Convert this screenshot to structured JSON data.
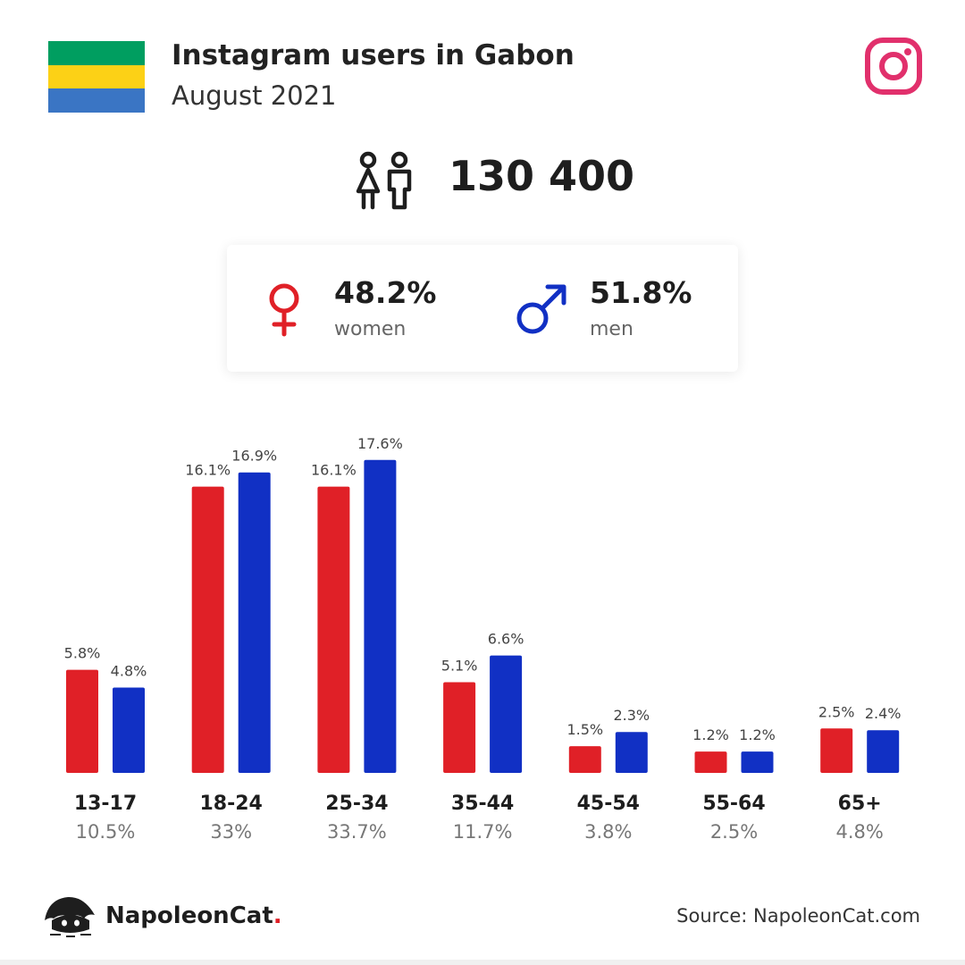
{
  "header": {
    "title": "Instagram users in Gabon",
    "subtitle": "August 2021",
    "flag_colors": [
      "#009e60",
      "#fcd116",
      "#3a75c4"
    ],
    "instagram_icon": "instagram-icon",
    "instagram_color": "#e1306c"
  },
  "summary": {
    "people_icon": "people-icon",
    "total": "130 400",
    "women": {
      "pct": "48.2%",
      "label": "women",
      "color": "#e02027",
      "icon": "female-icon"
    },
    "men": {
      "pct": "51.8%",
      "label": "men",
      "color": "#1130c4",
      "icon": "male-icon"
    }
  },
  "chart_data": {
    "type": "bar",
    "categories": [
      "13-17",
      "18-24",
      "25-34",
      "35-44",
      "45-54",
      "55-64",
      "65+"
    ],
    "category_totals": [
      "10.5%",
      "33%",
      "33.7%",
      "11.7%",
      "3.8%",
      "2.5%",
      "4.8%"
    ],
    "series": [
      {
        "name": "women",
        "color": "#e02027",
        "values": [
          5.8,
          16.1,
          16.1,
          5.1,
          1.5,
          1.2,
          2.5
        ]
      },
      {
        "name": "men",
        "color": "#1130c4",
        "values": [
          4.8,
          16.9,
          17.6,
          6.6,
          2.3,
          1.2,
          2.4
        ]
      }
    ],
    "value_suffix": "%",
    "grid": false,
    "legend": "none"
  },
  "footer": {
    "brand_name": "NapoleonCat",
    "brand_dot": ".",
    "brand_icon": "napoleoncat-logo-icon",
    "source": "Source: NapoleonCat.com"
  }
}
